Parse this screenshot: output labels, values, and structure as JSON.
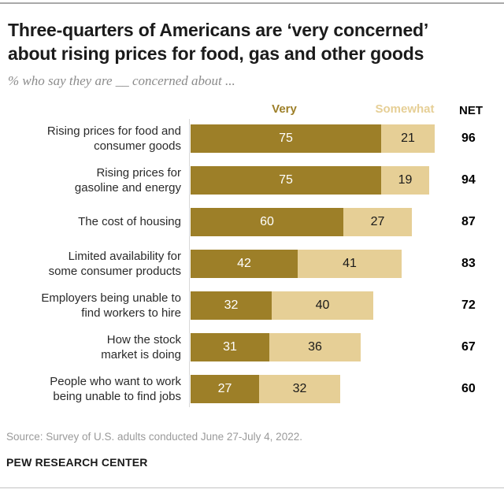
{
  "header": {
    "title": "Three-quarters of Americans are ‘very concerned’\nabout rising prices for food, gas and other goods",
    "subtitle": "% who say they are __ concerned about ..."
  },
  "legend": {
    "very_label": "Very",
    "somewhat_label": "Somewhat",
    "net_label": "NET"
  },
  "colors": {
    "very": "#9d7f28",
    "somewhat": "#e6cf96",
    "net_text": "#000000",
    "title_text": "#1b1b1b",
    "subtitle_text": "#8b8b8b",
    "source_text": "#9a9a9a"
  },
  "chart_data": {
    "type": "bar",
    "orientation": "horizontal",
    "stacked": true,
    "xlim": [
      0,
      100
    ],
    "grid": false,
    "legend_position": "top",
    "categories": [
      "Rising prices for food and\nconsumer goods",
      "Rising prices for\ngasoline and energy",
      "The cost of housing",
      "Limited availability for\nsome consumer products",
      "Employers being unable to\nfind workers to hire",
      "How the stock\nmarket is doing",
      "People who want to work\nbeing unable to find jobs"
    ],
    "series": [
      {
        "name": "Very",
        "color": "#9d7f28",
        "values": [
          75,
          75,
          60,
          42,
          32,
          31,
          27
        ]
      },
      {
        "name": "Somewhat",
        "color": "#e6cf96",
        "values": [
          21,
          19,
          27,
          41,
          40,
          36,
          32
        ]
      }
    ],
    "net_label": "NET",
    "net_values": [
      96,
      94,
      87,
      83,
      72,
      67,
      60
    ],
    "title": "Three-quarters of Americans are ‘very concerned’ about rising prices for food, gas and other goods",
    "subtitle": "% who say they are __ concerned about ..."
  },
  "footer": {
    "source": "Source: Survey of U.S. adults conducted June 27-July 4, 2022.",
    "brand": "PEW RESEARCH CENTER"
  }
}
